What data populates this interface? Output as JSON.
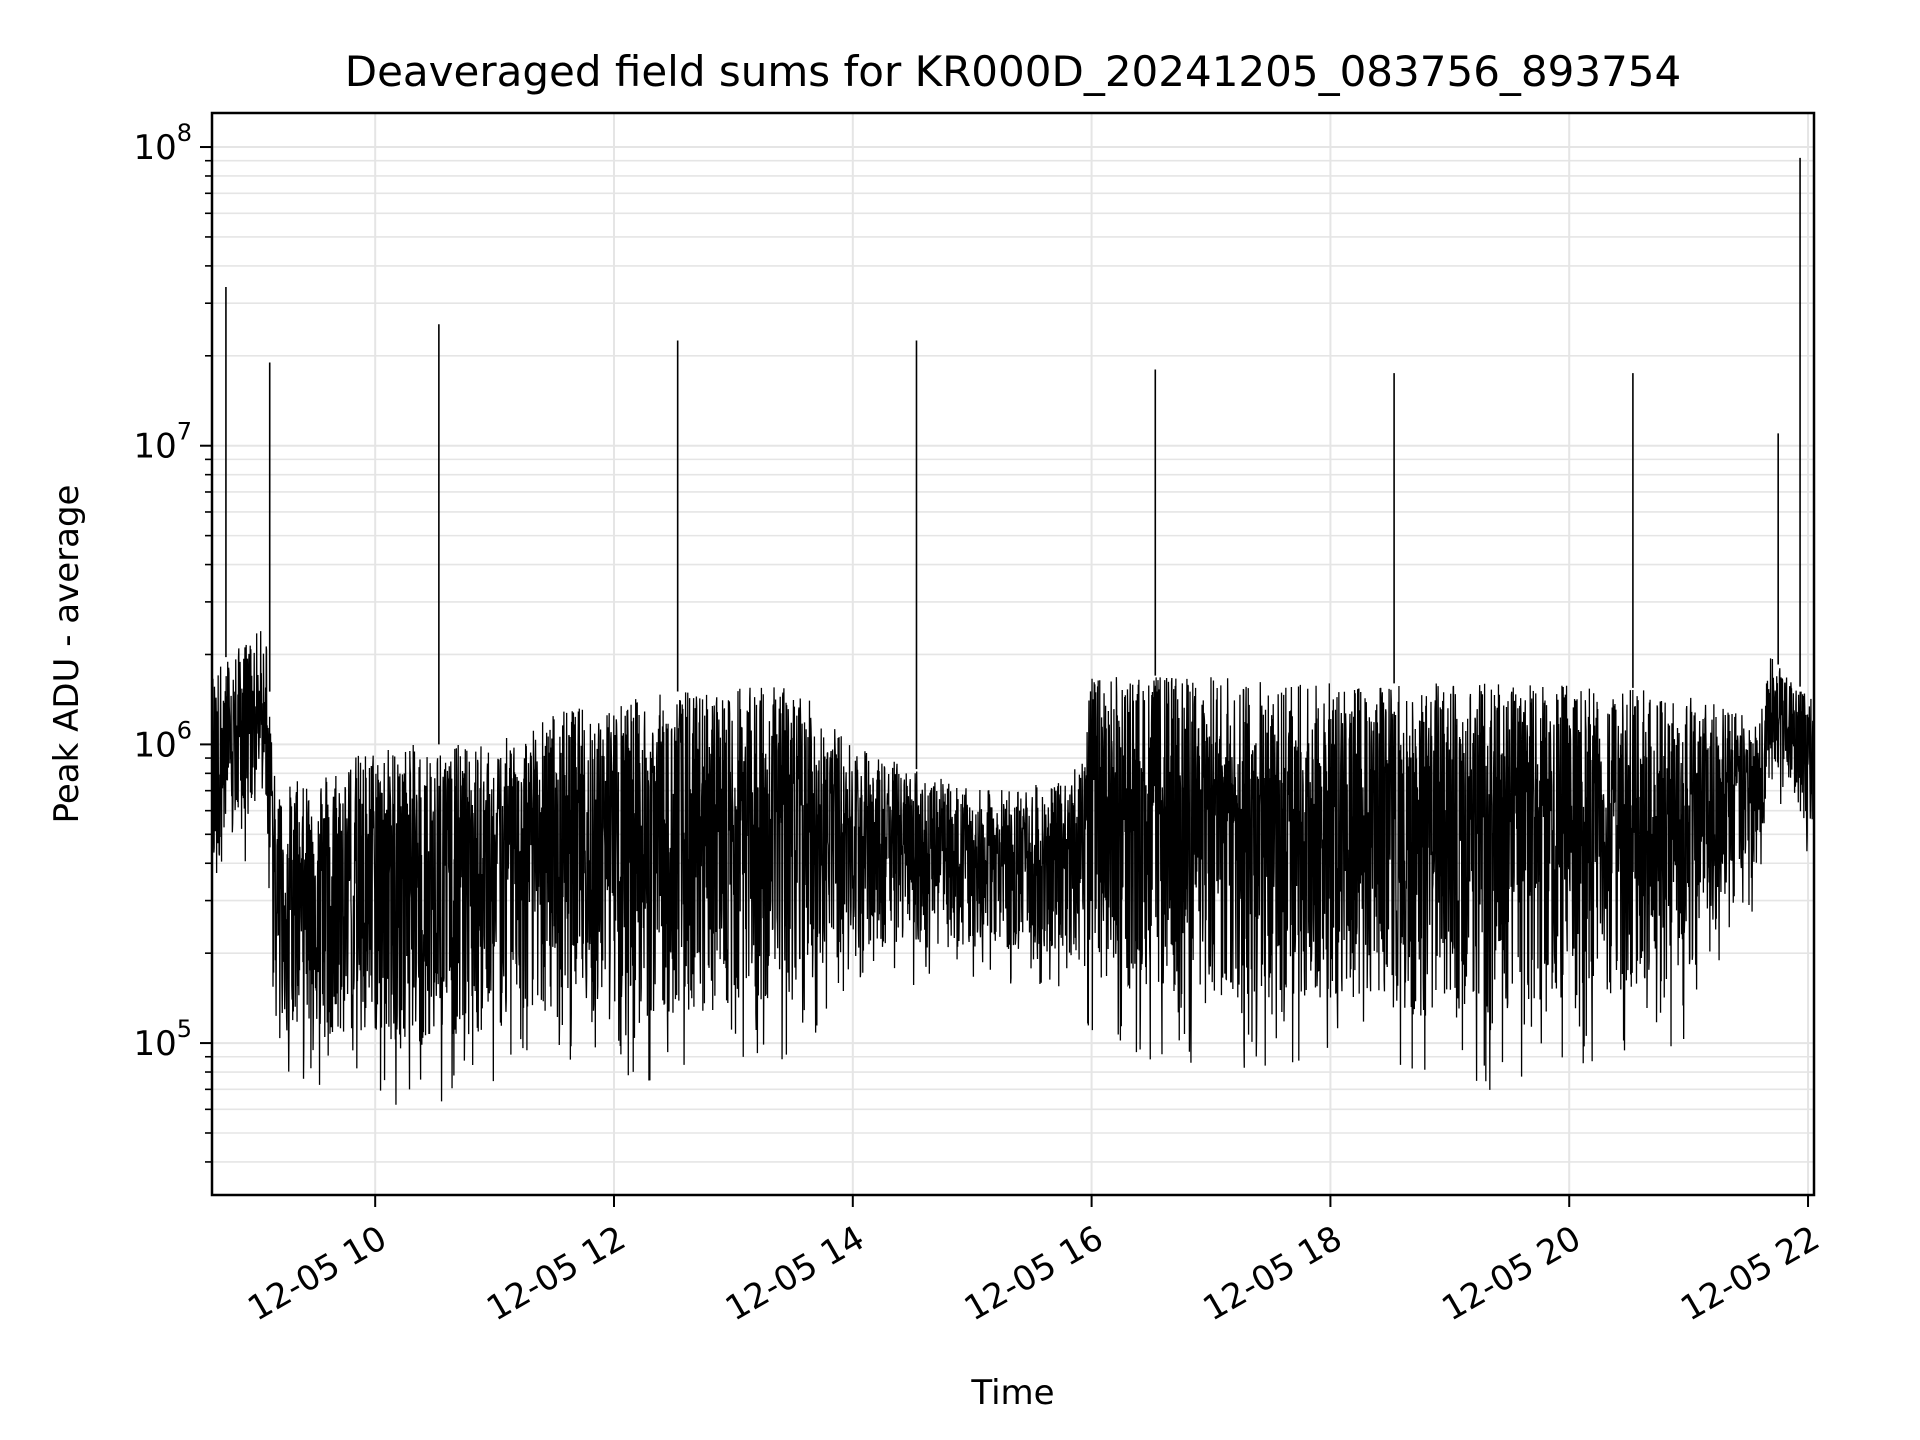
{
  "chart_data": {
    "type": "line",
    "title": "Deaveraged field sums for KR000D_20241205_083756_893754",
    "xlabel": "Time",
    "ylabel": "Peak ADU - average",
    "x_scale": "time",
    "y_scale": "log",
    "xlim": [
      "2024-12-05 08:38",
      "2024-12-05 22:03"
    ],
    "ylim": [
      31000,
      130000000
    ],
    "x_ticks": [
      "2024-12-05 10:00",
      "2024-12-05 12:00",
      "2024-12-05 14:00",
      "2024-12-05 16:00",
      "2024-12-05 18:00",
      "2024-12-05 20:00",
      "2024-12-05 22:00"
    ],
    "x_tick_labels": [
      "12-05 10",
      "12-05 12",
      "12-05 14",
      "12-05 16",
      "12-05 18",
      "12-05 20",
      "12-05 22"
    ],
    "y_ticks": [
      100000,
      1000000,
      10000000,
      100000000
    ],
    "y_tick_bases": [
      "10",
      "10",
      "10",
      "10"
    ],
    "y_tick_exponents": [
      "5",
      "6",
      "7",
      "8"
    ],
    "grid": true,
    "line_color": "#000000",
    "grid_color": "#e5e5e5",
    "series": [
      {
        "values_note_free": true,
        "x": [
          "2024-12-05 08:38",
          "2024-12-05 08:45",
          "2024-12-05 09:00",
          "2024-12-05 09:15",
          "2024-12-05 09:30",
          "2024-12-05 09:45",
          "2024-12-05 10:00",
          "2024-12-05 10:30",
          "2024-12-05 11:00",
          "2024-12-05 11:30",
          "2024-12-05 12:00",
          "2024-12-05 12:30",
          "2024-12-05 13:00",
          "2024-12-05 13:30",
          "2024-12-05 14:00",
          "2024-12-05 14:30",
          "2024-12-05 15:00",
          "2024-12-05 15:30",
          "2024-12-05 16:00",
          "2024-12-05 16:30",
          "2024-12-05 17:00",
          "2024-12-05 17:30",
          "2024-12-05 18:00",
          "2024-12-05 18:30",
          "2024-12-05 19:00",
          "2024-12-05 19:30",
          "2024-12-05 20:00",
          "2024-12-05 20:30",
          "2024-12-05 21:00",
          "2024-12-05 21:30",
          "2024-12-05 21:45",
          "2024-12-05 22:03"
        ],
        "values": [
          900000,
          1000000,
          1100000,
          300000,
          350000,
          300000,
          250000,
          300000,
          350000,
          500000,
          600000,
          650000,
          700000,
          800000,
          600000,
          500000,
          350000,
          300000,
          550000,
          600000,
          600000,
          600000,
          600000,
          600000,
          500000,
          550000,
          600000,
          600000,
          550000,
          500000,
          1100000,
          900000
        ]
      }
    ],
    "spikes": [
      {
        "x": "2024-12-05 08:45",
        "y": 34000000
      },
      {
        "x": "2024-12-05 09:07",
        "y": 19000000
      },
      {
        "x": "2024-12-05 10:32",
        "y": 25500000
      },
      {
        "x": "2024-12-05 12:32",
        "y": 22500000
      },
      {
        "x": "2024-12-05 14:32",
        "y": 22500000
      },
      {
        "x": "2024-12-05 16:32",
        "y": 18000000
      },
      {
        "x": "2024-12-05 18:32",
        "y": 17500000
      },
      {
        "x": "2024-12-05 20:32",
        "y": 17500000
      },
      {
        "x": "2024-12-05 21:45",
        "y": 11000000
      },
      {
        "x": "2024-12-05 21:56",
        "y": 92000000
      }
    ],
    "envelope": [
      {
        "x": "2024-12-05 08:38",
        "low": 250000,
        "high": 1800000
      },
      {
        "x": "2024-12-05 09:05",
        "low": 500000,
        "high": 2500000
      },
      {
        "x": "2024-12-05 09:10",
        "low": 80000,
        "high": 700000
      },
      {
        "x": "2024-12-05 10:00",
        "low": 60000,
        "high": 1000000
      },
      {
        "x": "2024-12-05 11:00",
        "low": 65000,
        "high": 1000000
      },
      {
        "x": "2024-12-05 11:30",
        "low": 90000,
        "high": 1300000
      },
      {
        "x": "2024-12-05 12:30",
        "low": 70000,
        "high": 1500000
      },
      {
        "x": "2024-12-05 13:30",
        "low": 80000,
        "high": 1600000
      },
      {
        "x": "2024-12-05 14:00",
        "low": 150000,
        "high": 1000000
      },
      {
        "x": "2024-12-05 15:00",
        "low": 160000,
        "high": 700000
      },
      {
        "x": "2024-12-05 15:50",
        "low": 140000,
        "high": 750000
      },
      {
        "x": "2024-12-05 16:00",
        "low": 90000,
        "high": 1700000
      },
      {
        "x": "2024-12-05 17:00",
        "low": 80000,
        "high": 1700000
      },
      {
        "x": "2024-12-05 18:00",
        "low": 80000,
        "high": 1600000
      },
      {
        "x": "2024-12-05 19:00",
        "low": 65000,
        "high": 1600000
      },
      {
        "x": "2024-12-05 20:00",
        "low": 80000,
        "high": 1600000
      },
      {
        "x": "2024-12-05 21:00",
        "low": 100000,
        "high": 1500000
      },
      {
        "x": "2024-12-05 21:35",
        "low": 300000,
        "high": 1200000
      },
      {
        "x": "2024-12-05 21:40",
        "low": 700000,
        "high": 2000000
      },
      {
        "x": "2024-12-05 22:03",
        "low": 400000,
        "high": 1400000
      }
    ]
  }
}
